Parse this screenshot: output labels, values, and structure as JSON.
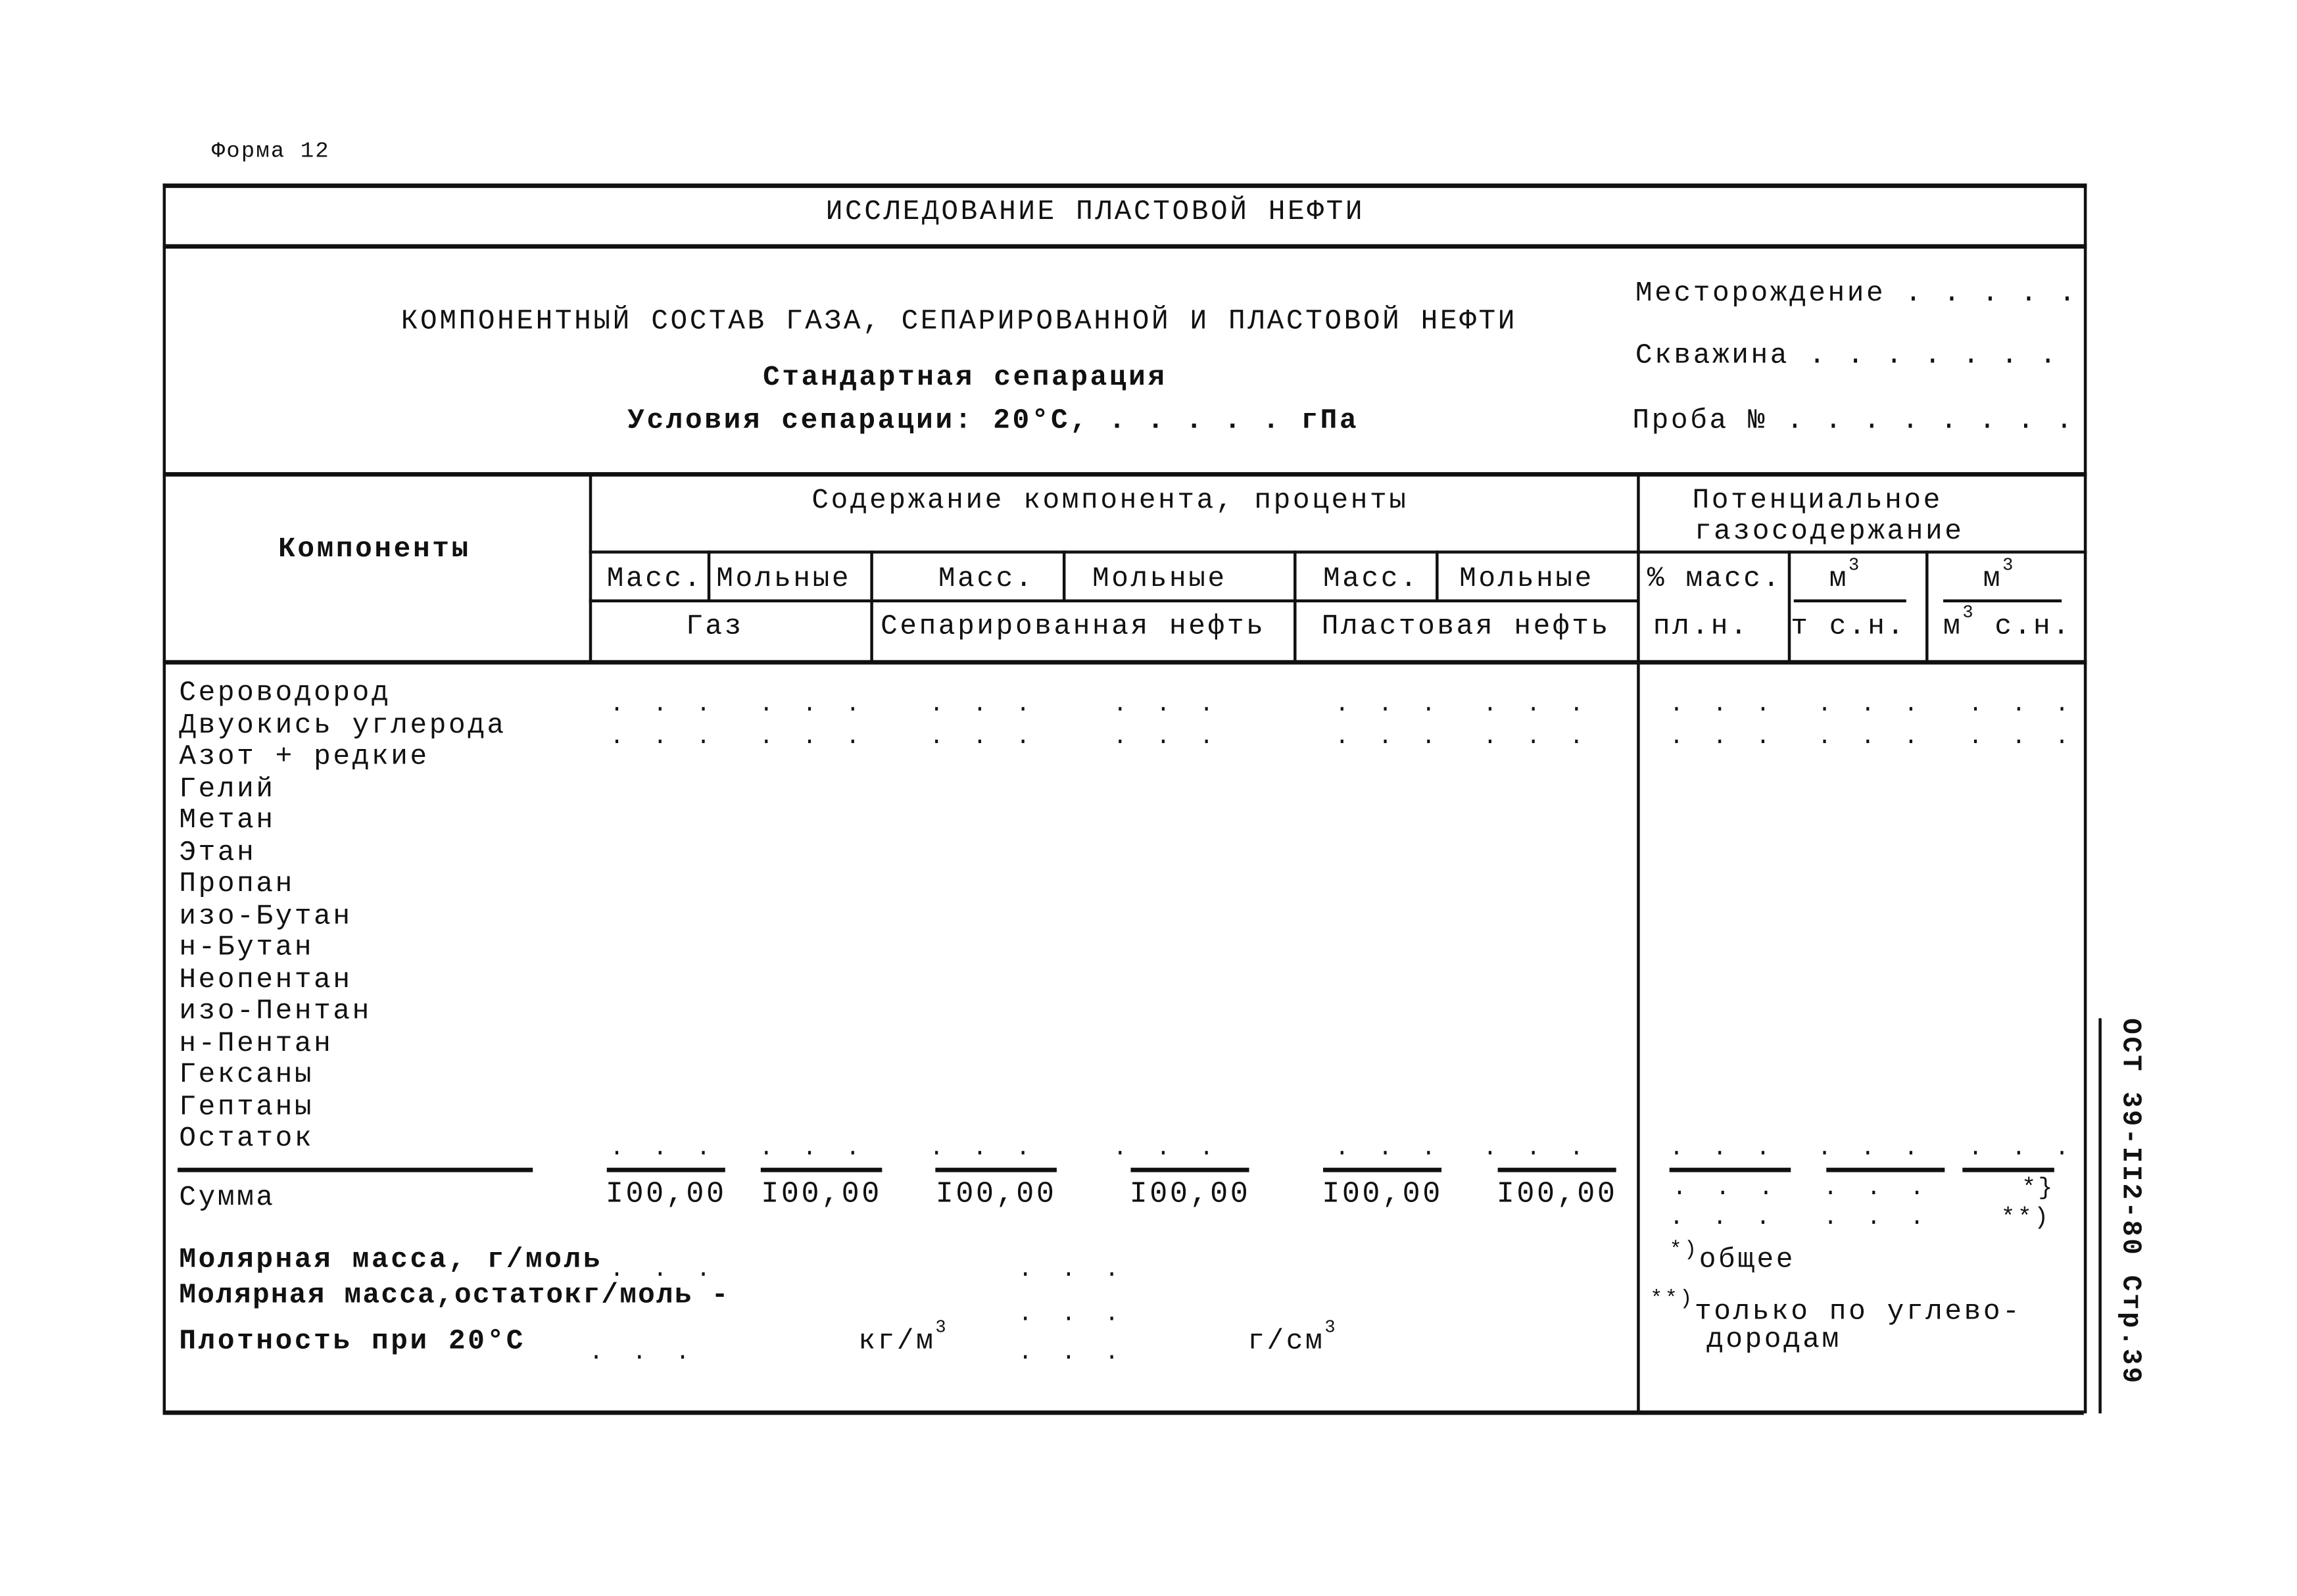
{
  "form_label": "Форма 12",
  "title": "ИССЛЕДОВАНИЕ ПЛАСТОВОЙ НЕФТИ",
  "subtitle": "КОМПОНЕНТНЫЙ СОСТАВ ГАЗА, СЕПАРИРОВАННОЙ И ПЛАСТОВОЙ НЕФТИ",
  "separation_type": "Стандартная сепарация",
  "separation_conditions": "Условия сепарации: 20°С, . . . . . гПа",
  "fields": {
    "deposit": "Месторождение . . . . .",
    "well": "Скважина . . . . . . .",
    "sample": "Проба № . . . . . . . ."
  },
  "header": {
    "components": "Компоненты",
    "content": "Содержание компонента, проценты",
    "potential_line1": "Потенциальное",
    "potential_line2": "газосодержание",
    "mass": "Масс.",
    "molar": "Мольные",
    "gas": "Газ",
    "separated_oil": "Сепарированная нефть",
    "reservoir_oil": "Пластовая нефть",
    "pct_mass": "% масс.",
    "m3": "м",
    "m3_sup": "3",
    "pl_n": "пл.н.",
    "t_sn": "т с.н.",
    "m3_sn": "м",
    "m3_sn_sup": "3",
    "m3_sn_rest": " с.н."
  },
  "components": [
    "Сероводород",
    "Двуокись углерода",
    "Азот + редкие",
    "Гелий",
    "Метан",
    "Этан",
    "Пропан",
    "изо-Бутан",
    "н-Бутан",
    "Неопентан",
    "изо-Пентан",
    "н-Пентан",
    "Гексаны",
    "Гептаны",
    "Остаток"
  ],
  "blank": ". . .",
  "sum": {
    "label": "Сумма",
    "values": [
      "I00,00",
      "I00,00",
      "I00,00",
      "I00,00",
      "I00,00",
      "I00,00"
    ],
    "mark_total": "*}",
    "mark_hc": "**)"
  },
  "bottom": {
    "molar_mass": "Молярная масса, г/моль",
    "molar_mass_residue": "Молярная масса,остатокг/моль -",
    "density": "Плотность при 20°С",
    "kg_m3": "кг/м",
    "g_cm3": "г/см",
    "sup3": "3"
  },
  "notes": {
    "total_mark": "*)",
    "total": "общее",
    "hc_mark": "**)",
    "hc_line1": "только по углево-",
    "hc_line2": "дородам"
  },
  "side_stamp": "ОСТ 39-II2-80 Стр.39"
}
